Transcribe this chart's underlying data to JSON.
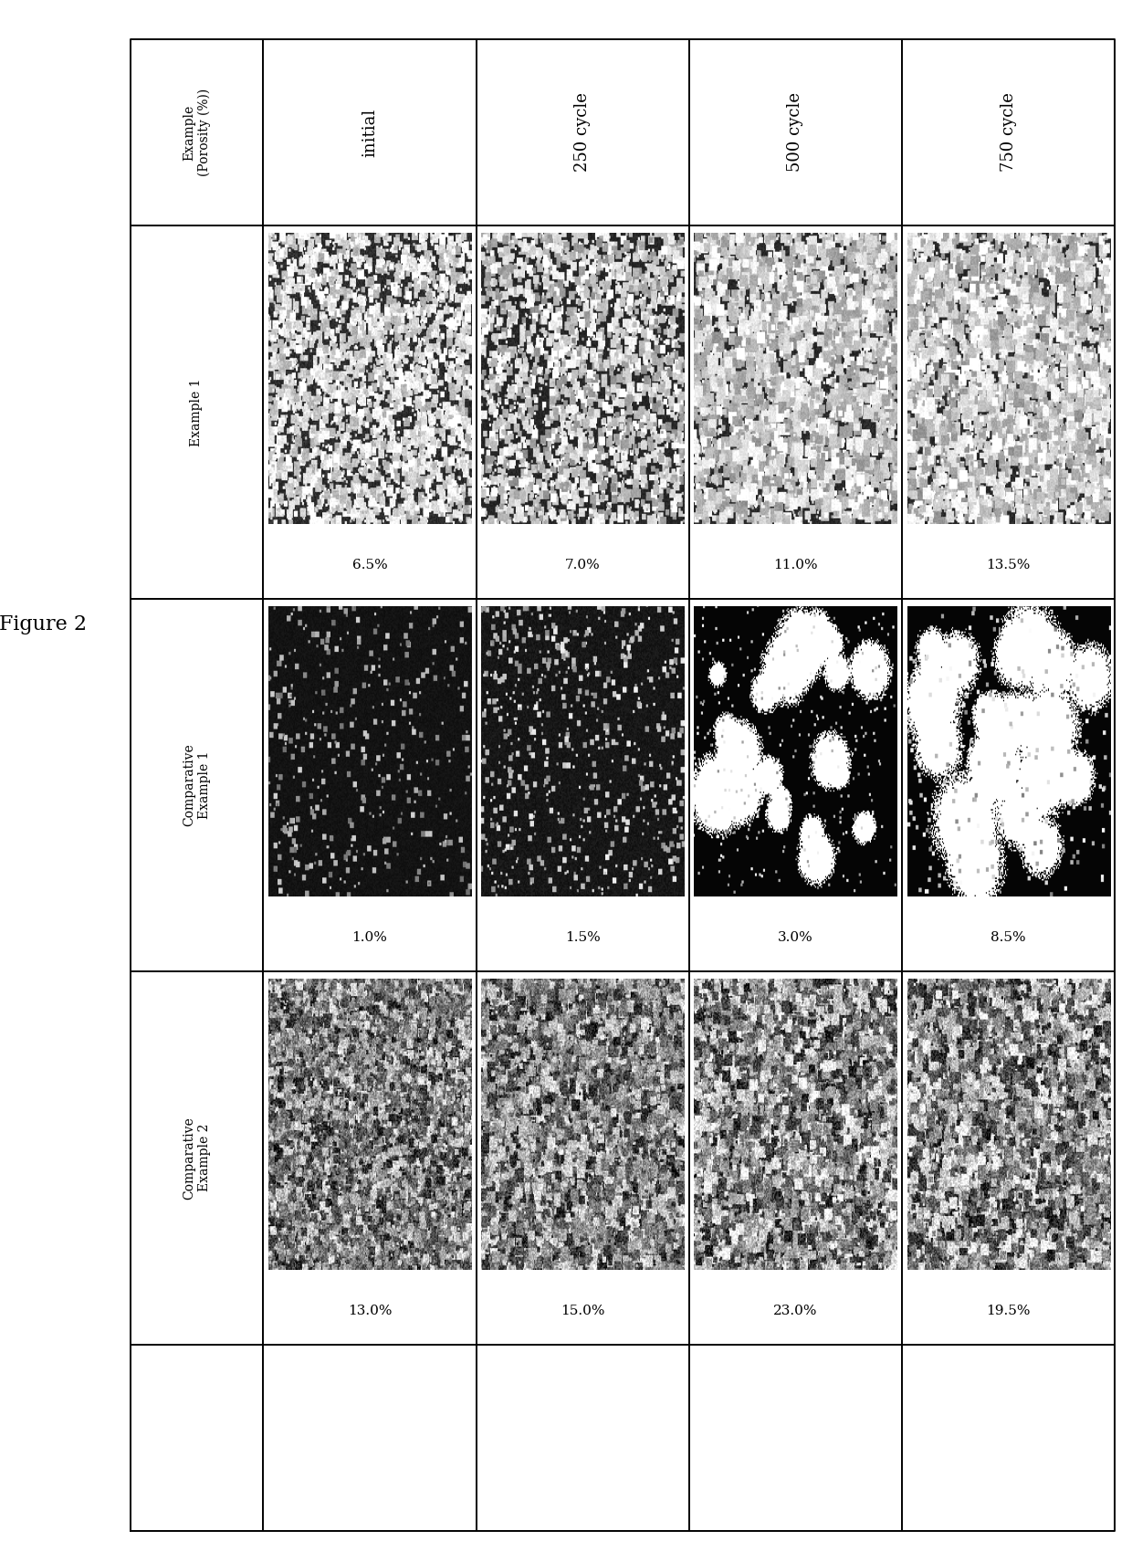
{
  "figure_title": "Figure 2",
  "col_headers": [
    "initial",
    "250 cycle",
    "500 cycle",
    "750 cycle"
  ],
  "row_labels": [
    "Example 1",
    "Comparative\nExample 1",
    "Comparative\nExample 2"
  ],
  "header_label": "Example\n(Porosity (%))",
  "porosity_values": [
    [
      "6.5%",
      "7.0%",
      "11.0%",
      "13.5%"
    ],
    [
      "1.0%",
      "1.5%",
      "3.0%",
      "8.5%"
    ],
    [
      "13.0%",
      "15.0%",
      "23.0%",
      "19.5%"
    ]
  ],
  "background_color": "#ffffff",
  "grid_color": "#000000",
  "text_color": "#000000"
}
